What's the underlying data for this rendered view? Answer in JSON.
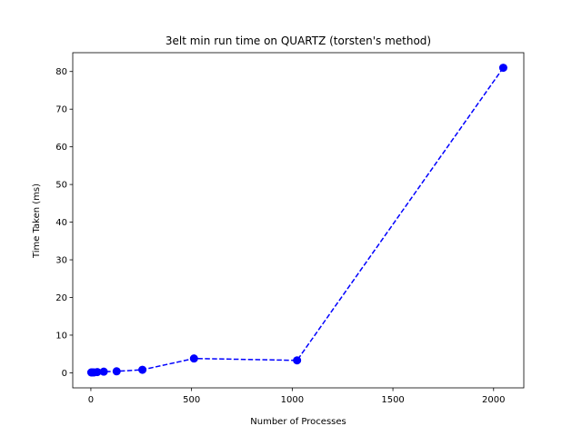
{
  "chart_data": {
    "type": "line",
    "title": "3elt min run time on QUARTZ (torsten's method)",
    "xlabel": "Number of Processes",
    "ylabel": "Time Taken (ms)",
    "xlim": [
      -90,
      2150
    ],
    "ylim": [
      -4,
      85
    ],
    "xticks": [
      0,
      500,
      1000,
      1500,
      2000
    ],
    "yticks": [
      0,
      10,
      20,
      30,
      40,
      50,
      60,
      70,
      80
    ],
    "grid": false,
    "legend": "none",
    "series": [
      {
        "color": "#0000ff",
        "line_style": "dashed",
        "marker": "circle",
        "x": [
          2,
          4,
          8,
          16,
          32,
          64,
          128,
          256,
          512,
          1024,
          2048
        ],
        "y": [
          0.1,
          0.1,
          0.1,
          0.1,
          0.2,
          0.3,
          0.4,
          0.8,
          3.8,
          3.3,
          81.0
        ]
      }
    ]
  }
}
